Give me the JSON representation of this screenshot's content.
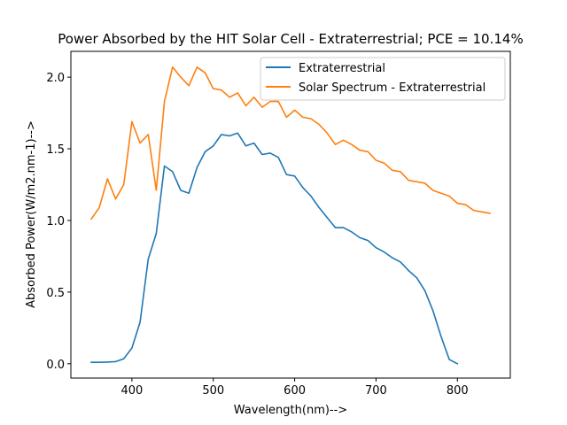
{
  "chart_data": {
    "type": "line",
    "title": "Power Absorbed by the HIT Solar Cell - Extraterrestrial; PCE = 10.14%",
    "xlabel": "Wavelength(nm)-->",
    "ylabel": "Absorbed Power(W/m2.nm-1)-->",
    "xlim": [
      325,
      865
    ],
    "ylim": [
      -0.1,
      2.18
    ],
    "xticks": [
      400,
      500,
      600,
      700,
      800
    ],
    "yticks": [
      0.0,
      0.5,
      1.0,
      1.5,
      2.0
    ],
    "xtick_labels": [
      "400",
      "500",
      "600",
      "700",
      "800"
    ],
    "ytick_labels": [
      "0.0",
      "0.5",
      "1.0",
      "1.5",
      "2.0"
    ],
    "grid": false,
    "legend": "top-right",
    "series": [
      {
        "name": "Extraterrestrial",
        "color": "#1f77b4",
        "x": [
          350,
          360,
          370,
          380,
          390,
          400,
          410,
          420,
          430,
          440,
          450,
          460,
          470,
          480,
          490,
          500,
          510,
          520,
          530,
          540,
          550,
          560,
          570,
          580,
          590,
          600,
          610,
          620,
          630,
          640,
          650,
          660,
          670,
          680,
          690,
          700,
          710,
          720,
          730,
          740,
          750,
          760,
          770,
          780,
          790,
          800
        ],
        "y": [
          0.01,
          0.01,
          0.012,
          0.015,
          0.035,
          0.11,
          0.29,
          0.73,
          0.91,
          1.38,
          1.34,
          1.21,
          1.19,
          1.37,
          1.48,
          1.52,
          1.6,
          1.59,
          1.61,
          1.52,
          1.54,
          1.46,
          1.47,
          1.44,
          1.32,
          1.31,
          1.23,
          1.17,
          1.09,
          1.02,
          0.95,
          0.95,
          0.92,
          0.88,
          0.86,
          0.81,
          0.78,
          0.74,
          0.71,
          0.65,
          0.6,
          0.51,
          0.37,
          0.19,
          0.03,
          0.0
        ]
      },
      {
        "name": "Solar Spectrum - Extraterrestrial",
        "color": "#ff7f0e",
        "x": [
          350,
          360,
          370,
          380,
          390,
          400,
          410,
          420,
          430,
          440,
          450,
          460,
          470,
          480,
          490,
          500,
          510,
          520,
          530,
          540,
          550,
          560,
          570,
          580,
          590,
          600,
          610,
          620,
          630,
          640,
          650,
          660,
          670,
          680,
          690,
          700,
          710,
          720,
          730,
          740,
          750,
          760,
          770,
          780,
          790,
          800,
          810,
          820,
          830,
          840
        ],
        "y": [
          1.01,
          1.09,
          1.29,
          1.15,
          1.25,
          1.69,
          1.54,
          1.6,
          1.21,
          1.83,
          2.07,
          2.0,
          1.94,
          2.07,
          2.03,
          1.92,
          1.91,
          1.86,
          1.89,
          1.8,
          1.86,
          1.79,
          1.83,
          1.83,
          1.72,
          1.77,
          1.72,
          1.71,
          1.67,
          1.61,
          1.53,
          1.56,
          1.53,
          1.49,
          1.48,
          1.42,
          1.4,
          1.35,
          1.34,
          1.28,
          1.27,
          1.26,
          1.21,
          1.19,
          1.17,
          1.12,
          1.11,
          1.07,
          1.06,
          1.05
        ]
      }
    ]
  }
}
